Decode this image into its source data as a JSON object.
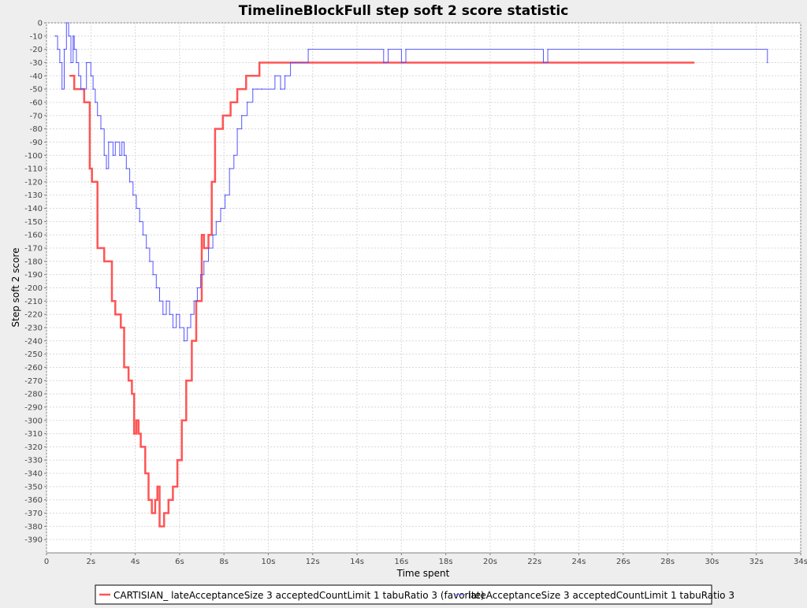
{
  "chart_data": {
    "type": "line",
    "title": "TimelineBlockFull step soft 2 score statistic",
    "xlabel": "Time spent",
    "ylabel": "Step soft 2 score",
    "xlim": [
      0,
      34
    ],
    "ylim": [
      -400,
      0
    ],
    "x_ticks": [
      0,
      2,
      4,
      6,
      8,
      10,
      12,
      14,
      16,
      18,
      20,
      22,
      24,
      26,
      28,
      30,
      32,
      34
    ],
    "x_tick_labels": [
      "0",
      "2s",
      "4s",
      "6s",
      "8s",
      "10s",
      "12s",
      "14s",
      "16s",
      "18s",
      "20s",
      "22s",
      "24s",
      "26s",
      "28s",
      "30s",
      "32s",
      "34s"
    ],
    "y_ticks": [
      0,
      -10,
      -20,
      -30,
      -40,
      -50,
      -60,
      -70,
      -80,
      -90,
      -100,
      -110,
      -120,
      -130,
      -140,
      -150,
      -160,
      -170,
      -180,
      -190,
      -200,
      -210,
      -220,
      -230,
      -240,
      -250,
      -260,
      -270,
      -280,
      -290,
      -300,
      -310,
      -320,
      -330,
      -340,
      -350,
      -360,
      -370,
      -380,
      -390
    ],
    "grid": true,
    "legend_position": "bottom",
    "series": [
      {
        "name": "CARTISIAN_ lateAcceptanceSize 3 acceptedCountLimit 1 tabuRatio 3 (favorite)",
        "color": "#ff5555",
        "style": "thick-step",
        "x": [
          1.05,
          1.25,
          1.7,
          1.95,
          2.05,
          2.3,
          2.6,
          2.95,
          3.1,
          3.35,
          3.5,
          3.55,
          3.7,
          3.85,
          3.95,
          4.05,
          4.15,
          4.25,
          4.45,
          4.6,
          4.75,
          4.9,
          5.0,
          5.1,
          5.3,
          5.5,
          5.7,
          5.9,
          6.1,
          6.3,
          6.4,
          6.55,
          6.75,
          7.0,
          7.1,
          7.3,
          7.45,
          7.6,
          7.8,
          7.95,
          8.3,
          8.6,
          9.0,
          9.6,
          10.1,
          29.2
        ],
        "values": [
          -40,
          -50,
          -60,
          -110,
          -120,
          -170,
          -180,
          -210,
          -220,
          -230,
          -260,
          -260,
          -270,
          -280,
          -310,
          -300,
          -310,
          -320,
          -340,
          -360,
          -370,
          -360,
          -350,
          -380,
          -370,
          -360,
          -350,
          -330,
          -300,
          -270,
          -270,
          -240,
          -210,
          -160,
          -170,
          -160,
          -120,
          -80,
          -80,
          -70,
          -60,
          -50,
          -40,
          -30,
          -30,
          -30
        ]
      },
      {
        "name": "lateAcceptanceSize 3 acceptedCountLimit 1 tabuRatio 3",
        "color": "#5555ff",
        "style": "thin-step",
        "x": [
          0.4,
          0.5,
          0.6,
          0.7,
          0.8,
          0.9,
          1.0,
          1.1,
          1.2,
          1.25,
          1.35,
          1.45,
          1.55,
          1.65,
          1.8,
          2.0,
          2.1,
          2.2,
          2.3,
          2.45,
          2.6,
          2.7,
          2.8,
          2.9,
          3.0,
          3.1,
          3.3,
          3.4,
          3.5,
          3.6,
          3.75,
          3.9,
          4.05,
          4.2,
          4.35,
          4.5,
          4.65,
          4.8,
          4.95,
          5.1,
          5.25,
          5.4,
          5.55,
          5.7,
          5.85,
          6.0,
          6.2,
          6.35,
          6.5,
          6.65,
          6.8,
          6.95,
          7.1,
          7.3,
          7.5,
          7.65,
          7.85,
          8.05,
          8.25,
          8.45,
          8.6,
          8.8,
          9.05,
          9.3,
          9.5,
          9.7,
          10.3,
          10.55,
          10.75,
          11.0,
          11.2,
          11.8,
          15.2,
          15.4,
          16.0,
          16.2,
          22.4,
          22.6,
          32.5
        ],
        "values": [
          -10,
          -20,
          -30,
          -50,
          -20,
          0,
          -10,
          -30,
          -10,
          -20,
          -30,
          -40,
          -50,
          -50,
          -30,
          -40,
          -50,
          -60,
          -70,
          -80,
          -100,
          -110,
          -90,
          -90,
          -100,
          -90,
          -100,
          -90,
          -100,
          -110,
          -120,
          -130,
          -140,
          -150,
          -160,
          -170,
          -180,
          -190,
          -200,
          -210,
          -220,
          -210,
          -220,
          -230,
          -220,
          -230,
          -240,
          -230,
          -220,
          -210,
          -200,
          -190,
          -180,
          -170,
          -160,
          -150,
          -140,
          -130,
          -110,
          -100,
          -80,
          -70,
          -60,
          -50,
          -50,
          -50,
          -40,
          -50,
          -40,
          -30,
          -30,
          -20,
          -30,
          -20,
          -30,
          -20,
          -30,
          -20,
          -30
        ]
      }
    ]
  }
}
